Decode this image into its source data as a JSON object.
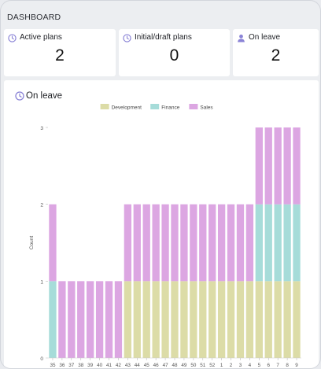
{
  "header": {
    "title": "DASHBOARD"
  },
  "cards": [
    {
      "label": "Active plans",
      "value": "2",
      "icon": "clock-icon"
    },
    {
      "label": "Initial/draft plans",
      "value": "0",
      "icon": "clock-icon"
    },
    {
      "label": "On leave",
      "value": "2",
      "icon": "person-icon"
    }
  ],
  "panel": {
    "title": "On leave",
    "icon": "clock-icon"
  },
  "colors": {
    "accent": "#8a83d6",
    "development": "#dcdca7",
    "finance": "#a6dcd9",
    "sales": "#dca6e2"
  },
  "chart_data": {
    "type": "bar",
    "stacked": true,
    "ylabel": "Count",
    "xlabel": "",
    "ylim": [
      0,
      3
    ],
    "yticks": [
      0,
      1,
      2,
      3
    ],
    "grid": false,
    "legend_position": "top",
    "categories": [
      "35",
      "36",
      "37",
      "38",
      "39",
      "40",
      "41",
      "42",
      "43",
      "44",
      "45",
      "46",
      "47",
      "48",
      "49",
      "50",
      "51",
      "52",
      "1",
      "2",
      "3",
      "4",
      "5",
      "6",
      "7",
      "8",
      "9"
    ],
    "series": [
      {
        "name": "Development",
        "color": "#dcdca7",
        "values": [
          0,
          0,
          0,
          0,
          0,
          0,
          0,
          0,
          1,
          1,
          1,
          1,
          1,
          1,
          1,
          1,
          1,
          1,
          1,
          1,
          1,
          1,
          1,
          1,
          1,
          1,
          1
        ]
      },
      {
        "name": "Finance",
        "color": "#a6dcd9",
        "values": [
          1,
          0,
          0,
          0,
          0,
          0,
          0,
          0,
          0,
          0,
          0,
          0,
          0,
          0,
          0,
          0,
          0,
          0,
          0,
          0,
          0,
          0,
          1,
          1,
          1,
          1,
          1
        ]
      },
      {
        "name": "Sales",
        "color": "#dca6e2",
        "values": [
          1,
          1,
          1,
          1,
          1,
          1,
          1,
          1,
          1,
          1,
          1,
          1,
          1,
          1,
          1,
          1,
          1,
          1,
          1,
          1,
          1,
          1,
          1,
          1,
          1,
          1,
          1
        ]
      }
    ]
  }
}
